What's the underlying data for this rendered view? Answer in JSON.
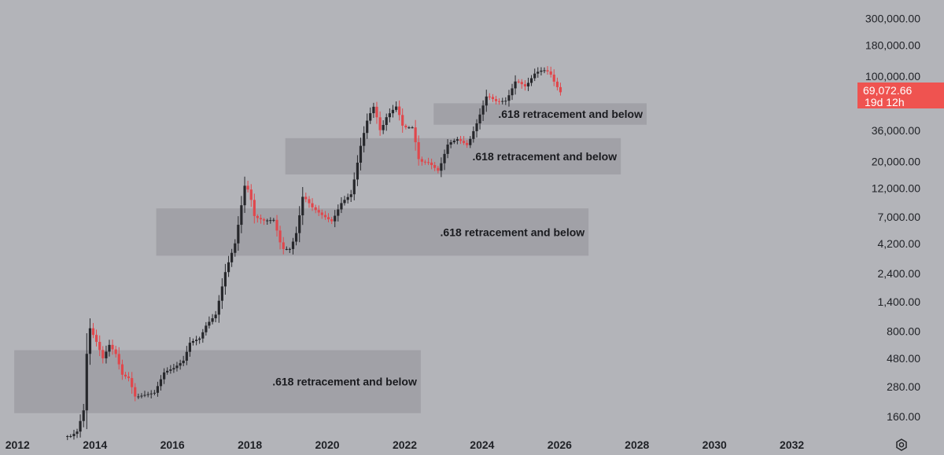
{
  "chart_data": {
    "type": "candlestick",
    "y_scale": "log",
    "ylim": [
      110,
      360000
    ],
    "xlim": [
      "2011-12-15",
      "2033-02-15"
    ],
    "grid": false,
    "colors": {
      "up": "#26272b",
      "down": "#e0474c",
      "background": "#b3b4b9",
      "zone": "#9d9ea3",
      "price_tag": "#ef5350"
    },
    "y_ticks": [
      "300,000.00",
      "180,000.00",
      "100,000.00",
      "36,000.00",
      "20,000.00",
      "12,000.00",
      "7,000.00",
      "4,200.00",
      "2,400.00",
      "1,400.00",
      "800.00",
      "480.00",
      "280.00",
      "160.00"
    ],
    "x_ticks": [
      "2012",
      "2014",
      "2016",
      "2018",
      "2020",
      "2022",
      "2024",
      "2026",
      "2028",
      "2030",
      "2032"
    ],
    "last_price": {
      "value": "69,072.66",
      "countdown": "19d 12h"
    },
    "settings_icon": "gear-icon",
    "zones": [
      {
        "label": ".618 retracement and below",
        "x_start": "2011-12-01",
        "x_end": "2022-06-01",
        "y_low": 170,
        "y_high": 560
      },
      {
        "label": ".618 retracement and below",
        "x_start": "2015-08-01",
        "x_end": "2026-10-01",
        "y_low": 3350,
        "y_high": 8200
      },
      {
        "label": ".618 retracement and below",
        "x_start": "2018-12-01",
        "x_end": "2027-08-01",
        "y_low": 15600,
        "y_high": 31000
      },
      {
        "label": ".618 retracement and below",
        "x_start": "2022-10-01",
        "x_end": "2028-04-01",
        "y_low": 40000,
        "y_high": 60000
      }
    ],
    "anchors": [
      [
        "2013-04-01",
        110
      ],
      [
        "2013-06-01",
        110
      ],
      [
        "2013-08-01",
        120
      ],
      [
        "2013-10-01",
        180
      ],
      [
        "2013-11-15",
        900
      ],
      [
        "2013-12-15",
        800
      ],
      [
        "2014-02-01",
        650
      ],
      [
        "2014-04-01",
        480
      ],
      [
        "2014-06-01",
        620
      ],
      [
        "2014-08-01",
        520
      ],
      [
        "2014-10-01",
        350
      ],
      [
        "2014-12-01",
        330
      ],
      [
        "2015-02-01",
        230
      ],
      [
        "2015-05-01",
        240
      ],
      [
        "2015-08-01",
        250
      ],
      [
        "2015-11-01",
        370
      ],
      [
        "2016-02-01",
        400
      ],
      [
        "2016-05-01",
        460
      ],
      [
        "2016-07-01",
        650
      ],
      [
        "2016-10-01",
        700
      ],
      [
        "2016-12-01",
        900
      ],
      [
        "2017-03-01",
        1100
      ],
      [
        "2017-06-01",
        2500
      ],
      [
        "2017-09-01",
        4300
      ],
      [
        "2017-12-01",
        13000
      ],
      [
        "2018-01-15",
        11000
      ],
      [
        "2018-03-01",
        7000
      ],
      [
        "2018-06-01",
        6500
      ],
      [
        "2018-09-01",
        6600
      ],
      [
        "2018-11-15",
        3800
      ],
      [
        "2019-02-01",
        3800
      ],
      [
        "2019-04-01",
        5200
      ],
      [
        "2019-06-01",
        10500
      ],
      [
        "2019-09-01",
        8300
      ],
      [
        "2019-12-01",
        7200
      ],
      [
        "2020-03-01",
        6400
      ],
      [
        "2020-06-01",
        9200
      ],
      [
        "2020-09-01",
        10800
      ],
      [
        "2020-12-01",
        28000
      ],
      [
        "2021-02-01",
        45000
      ],
      [
        "2021-04-01",
        57000
      ],
      [
        "2021-06-01",
        35000
      ],
      [
        "2021-08-01",
        47000
      ],
      [
        "2021-11-01",
        57000
      ],
      [
        "2022-01-01",
        38000
      ],
      [
        "2022-04-01",
        38000
      ],
      [
        "2022-06-01",
        20000
      ],
      [
        "2022-09-01",
        19500
      ],
      [
        "2022-12-01",
        16600
      ],
      [
        "2023-03-01",
        28000
      ],
      [
        "2023-06-01",
        30500
      ],
      [
        "2023-09-01",
        27000
      ],
      [
        "2023-12-01",
        42000
      ],
      [
        "2024-03-01",
        70000
      ],
      [
        "2024-06-01",
        62000
      ],
      [
        "2024-09-01",
        63000
      ],
      [
        "2024-12-01",
        93000
      ],
      [
        "2025-03-01",
        82000
      ],
      [
        "2025-06-01",
        107000
      ],
      [
        "2025-08-15",
        113000
      ],
      [
        "2025-10-15",
        108000
      ],
      [
        "2025-12-01",
        88000
      ],
      [
        "2026-02-15",
        69072.66
      ]
    ]
  }
}
